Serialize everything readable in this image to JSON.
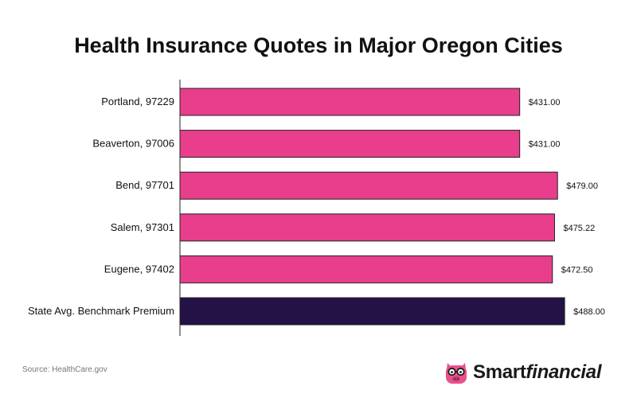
{
  "chart_data": {
    "type": "bar",
    "orientation": "horizontal",
    "title": "Health Insurance Quotes in Major Oregon Cities",
    "categories": [
      "Portland, 97229",
      "Beaverton, 97006",
      "Bend, 97701",
      "Salem, 97301",
      "Eugene, 97402",
      "State Avg. Benchmark Premium"
    ],
    "values": [
      431.0,
      431.0,
      479.0,
      475.22,
      472.5,
      488.0
    ],
    "value_labels": [
      "$431.00",
      "$431.00",
      "$479.00",
      "$475.22",
      "$472.50",
      "$488.00"
    ],
    "bar_colors": [
      "#e83e8c",
      "#e83e8c",
      "#e83e8c",
      "#e83e8c",
      "#e83e8c",
      "#241145"
    ],
    "xlim": [
      0,
      500
    ],
    "xlabel": "",
    "ylabel": "",
    "grid": false,
    "legend": "none"
  },
  "footer": {
    "source": "Source: HealthCare.gov",
    "logo_bold": "Smart",
    "logo_italic": "financial",
    "logo_icon": "piggy-bank-glasses-icon"
  },
  "colors": {
    "accent": "#e83e8c",
    "benchmark": "#241145",
    "logo_icon": "#e8528c"
  }
}
